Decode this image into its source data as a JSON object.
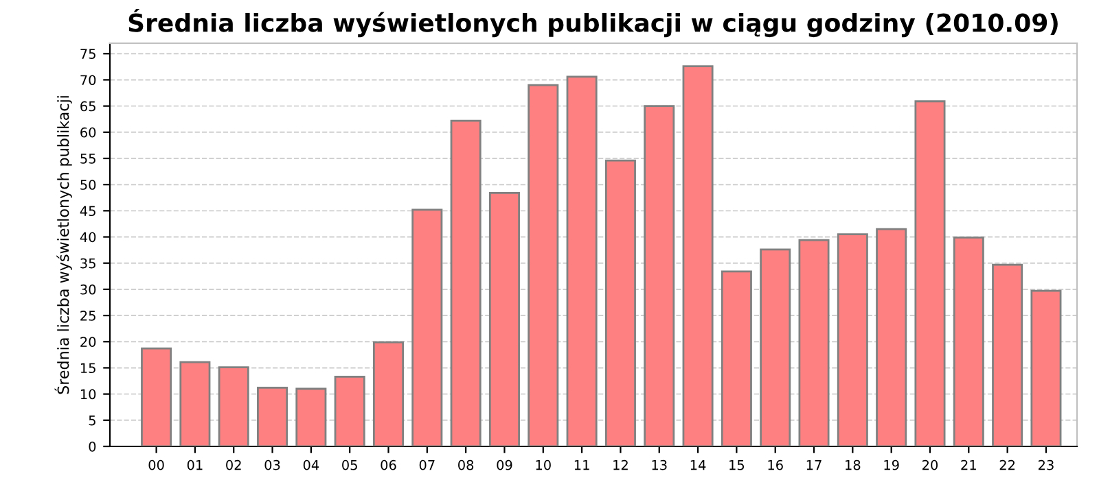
{
  "chart_data": {
    "type": "bar",
    "title": "Średnia liczba wyświetlonych publikacji w ciągu godziny (2010.09)",
    "ylabel": "Średnia liczba wyświetlonych publikacji",
    "categories": [
      "00",
      "01",
      "02",
      "03",
      "04",
      "05",
      "06",
      "07",
      "08",
      "09",
      "10",
      "11",
      "12",
      "13",
      "14",
      "15",
      "16",
      "17",
      "18",
      "19",
      "20",
      "21",
      "22",
      "23"
    ],
    "values": [
      18.7,
      16.1,
      15.1,
      11.2,
      11.0,
      13.3,
      19.9,
      45.2,
      62.2,
      48.4,
      69.0,
      70.6,
      54.6,
      65.0,
      72.6,
      33.4,
      37.6,
      39.4,
      40.5,
      41.5,
      65.9,
      39.9,
      34.7,
      29.7
    ],
    "color": "#ff8080",
    "ylim": [
      0,
      77
    ],
    "yticks": [
      0,
      5,
      10,
      15,
      20,
      25,
      30,
      35,
      40,
      45,
      50,
      55,
      60,
      65,
      70,
      75
    ],
    "grid": "y"
  }
}
